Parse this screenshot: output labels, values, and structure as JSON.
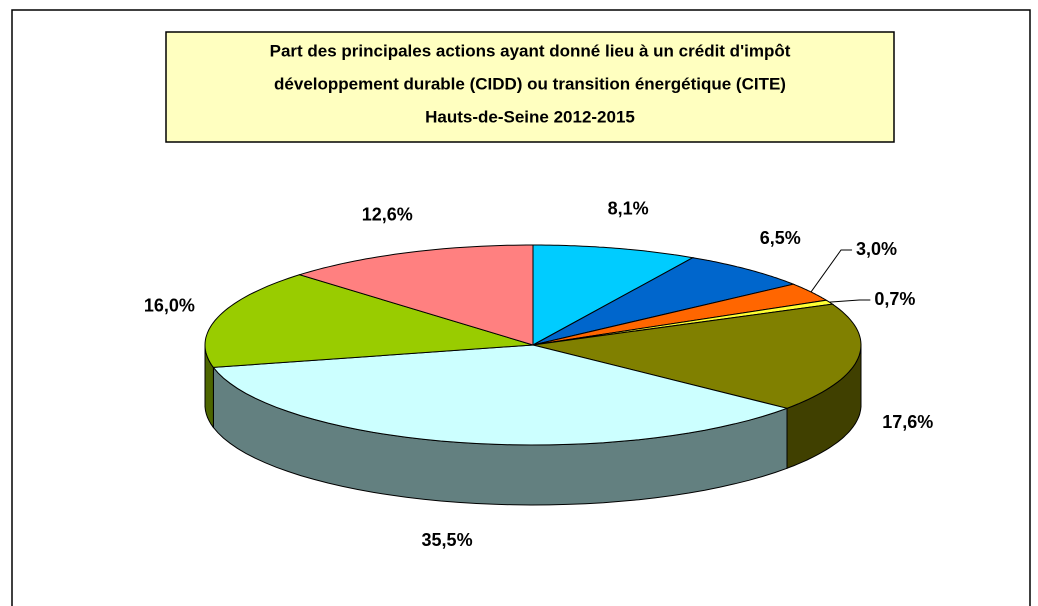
{
  "chart_data": {
    "type": "pie",
    "title": [
      "Part des principales actions ayant donné lieu à un crédit d'impôt",
      "développement durable (CIDD) ou transition énergétique (CITE)",
      "Hauts-de-Seine 2012-2015"
    ],
    "values": [
      8.1,
      6.5,
      3.0,
      0.7,
      17.6,
      35.5,
      16.0,
      12.6
    ],
    "value_labels": [
      "8,1%",
      "6,5%",
      "3,0%",
      "0,7%",
      "17,6%",
      "35,5%",
      "16,0%",
      "12,6%"
    ],
    "colors": [
      "#00ccff",
      "#0066cc",
      "#ff6600",
      "#ffff33",
      "#808000",
      "#ccffff",
      "#99cc00",
      "#ff8080"
    ],
    "side_colors": [
      "#007a99",
      "#003d7a",
      "#993d00",
      "#999900",
      "#404000",
      "#638080",
      "#4d6600",
      "#994d4d"
    ]
  }
}
